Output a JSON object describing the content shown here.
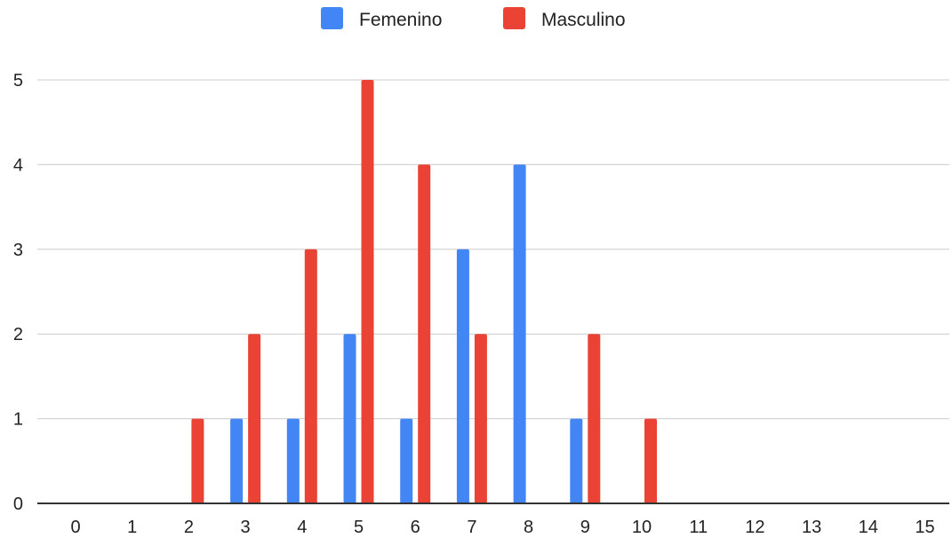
{
  "chart_data": {
    "type": "bar",
    "categories": [
      "0",
      "1",
      "2",
      "3",
      "4",
      "5",
      "6",
      "7",
      "8",
      "9",
      "10",
      "11",
      "12",
      "13",
      "14",
      "15"
    ],
    "series": [
      {
        "name": "Femenino",
        "color": "#4285f4",
        "values": [
          0,
          0,
          0,
          1,
          1,
          2,
          1,
          3,
          4,
          1,
          0,
          0,
          0,
          0,
          0,
          0
        ]
      },
      {
        "name": "Masculino",
        "color": "#ea4335",
        "values": [
          0,
          0,
          1,
          2,
          3,
          5,
          4,
          2,
          0,
          2,
          1,
          0,
          0,
          0,
          0,
          0
        ]
      }
    ],
    "yticks": [
      "0",
      "1",
      "2",
      "3",
      "4",
      "5"
    ],
    "ylim": [
      0,
      5
    ],
    "grid": true,
    "legend_position": "top-center"
  }
}
